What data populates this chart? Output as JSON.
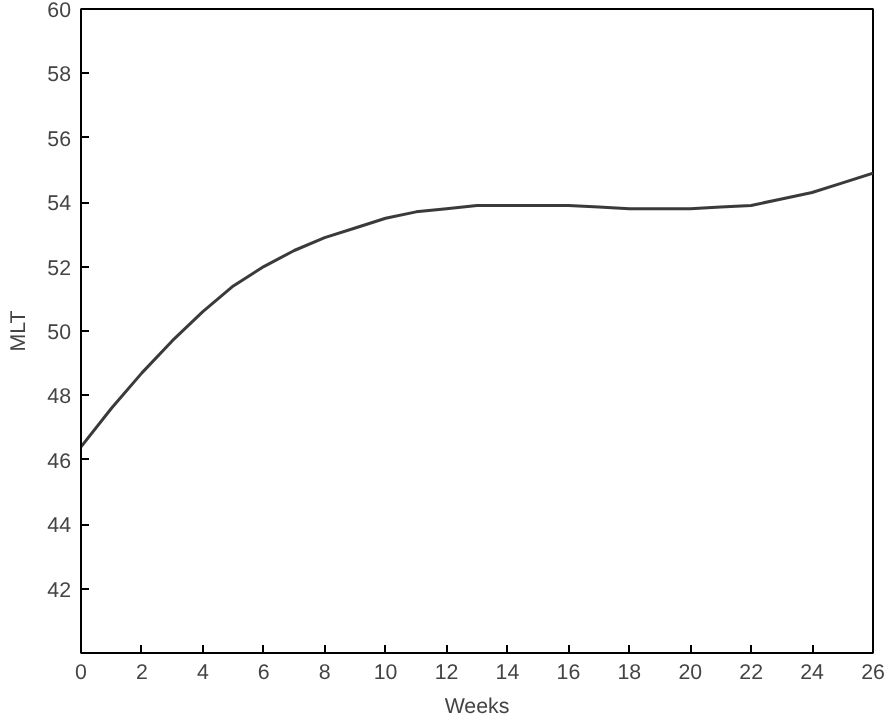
{
  "chart_data": {
    "type": "line",
    "xlabel": "Weeks",
    "ylabel": "MLT",
    "x": [
      0,
      1,
      2,
      3,
      4,
      5,
      6,
      7,
      8,
      9,
      10,
      11,
      12,
      13,
      14,
      15,
      16,
      17,
      18,
      19,
      20,
      21,
      22,
      23,
      24,
      25,
      26
    ],
    "series": [
      {
        "color": "#3a3a3a",
        "values": [
          46.4,
          47.6,
          48.7,
          49.7,
          50.6,
          51.4,
          52.0,
          52.5,
          52.9,
          53.2,
          53.5,
          53.7,
          53.8,
          53.9,
          53.9,
          53.9,
          53.9,
          53.85,
          53.8,
          53.8,
          53.8,
          53.85,
          53.9,
          54.1,
          54.3,
          54.6,
          54.9
        ]
      }
    ],
    "xlim": [
      0,
      26
    ],
    "ylim": [
      40,
      60
    ],
    "xticks": [
      0,
      2,
      4,
      6,
      8,
      10,
      12,
      14,
      16,
      18,
      20,
      22,
      24,
      26
    ],
    "yticks": [
      {
        "value": 40,
        "label": null
      },
      42,
      44,
      46,
      48,
      50,
      52,
      54,
      56,
      58,
      60
    ],
    "grid": false,
    "marker": "none",
    "line_style": "solid"
  }
}
